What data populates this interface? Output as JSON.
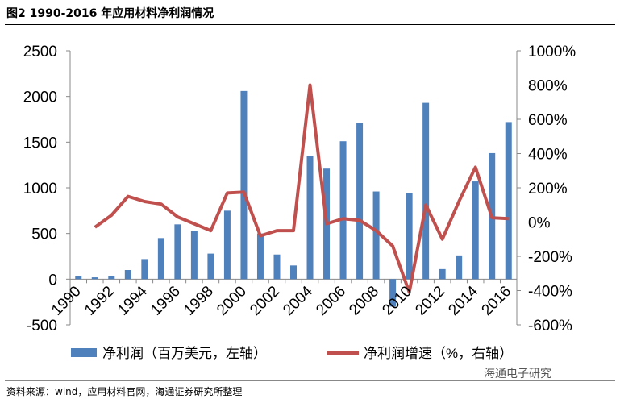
{
  "title": "图2  1990-2016 年应用材料净利润情况",
  "source": "资料来源：wind，应用材料官网，海通证券研究所整理",
  "watermark": "海通电子研究",
  "chart_data": {
    "type": "bar",
    "title": "1990-2016 年应用材料净利润情况",
    "categories": [
      "1990",
      "1991",
      "1992",
      "1993",
      "1994",
      "1995",
      "1996",
      "1997",
      "1998",
      "1999",
      "2000",
      "2001",
      "2002",
      "2003",
      "2004",
      "2005",
      "2006",
      "2007",
      "2008",
      "2009",
      "2010",
      "2011",
      "2012",
      "2013",
      "2014",
      "2015",
      "2016"
    ],
    "x_tick_labels": [
      "1990",
      "1992",
      "1994",
      "1996",
      "1998",
      "2000",
      "2002",
      "2004",
      "2006",
      "2008",
      "2010",
      "2012",
      "2014",
      "2016"
    ],
    "left_axis": {
      "ylim": [
        -500,
        2500
      ],
      "ticks": [
        "-500",
        "0",
        "500",
        "1000",
        "1500",
        "2000",
        "2500"
      ]
    },
    "right_axis": {
      "ylim": [
        -600,
        1000
      ],
      "ticks": [
        "-600%",
        "-400%",
        "-200%",
        "0%",
        "200%",
        "400%",
        "600%",
        "800%",
        "1000%"
      ]
    },
    "series": [
      {
        "name": "净利润（百万美元，左轴）",
        "type": "bar",
        "axis": "left",
        "color": "#4F81BD",
        "values": [
          30,
          20,
          35,
          100,
          220,
          450,
          600,
          530,
          280,
          750,
          2060,
          500,
          270,
          150,
          1350,
          1210,
          1510,
          1710,
          960,
          -300,
          940,
          1930,
          110,
          260,
          1070,
          1380,
          1720
        ]
      },
      {
        "name": "净利润增速（%，右轴）",
        "type": "line",
        "axis": "right",
        "color": "#C0504D",
        "values": [
          null,
          -30,
          40,
          150,
          120,
          105,
          30,
          -10,
          -50,
          170,
          175,
          -80,
          -50,
          -50,
          800,
          -10,
          20,
          10,
          -50,
          -140,
          -410,
          100,
          -100,
          120,
          320,
          25,
          20
        ]
      }
    ],
    "legend": "bottom"
  }
}
